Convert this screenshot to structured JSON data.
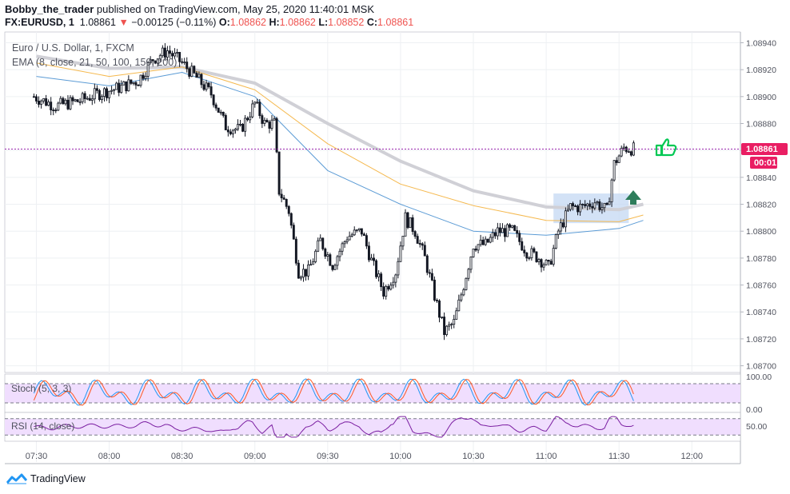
{
  "header": {
    "author": "Bobby_the_trader",
    "published_text": "published on TradingView.com, May 25, 2020 11:40:01 MSK",
    "symbol": "FX:EURUSD, 1",
    "last": "1.08861",
    "change": "−0.00125 (−0.11%)",
    "o_label": "O:",
    "o_value": "1.08862",
    "h_label": "H:",
    "h_value": "1.08862",
    "l_label": "L:",
    "l_value": "1.08852",
    "c_label": "C:",
    "c_value": "1.08861"
  },
  "legend": {
    "instrument": "Euro / U.S. Dollar, 1, FXCM",
    "ema": "EMA (8, close, 21, 50, 100, 150, 200)"
  },
  "price_label": "1.08861",
  "countdown": "00:01",
  "stoch_label": "Stoch (5, 3, 3)",
  "rsi_label": "RSI (14, close)",
  "stoch_ticks": [
    "100.00",
    "0.00"
  ],
  "rsi_ticks": [
    "50.00"
  ],
  "brand": "TradingView",
  "colors": {
    "up": "#131722",
    "down": "#131722",
    "wick": "#131722",
    "ema_fast": "#5b9bd5",
    "ema_mid": "#f5b94f",
    "ema_slow": "#d0d0d6",
    "price_line": "#9c27b0",
    "price_label_bg": "#e91e63",
    "stoch_k": "#2196f3",
    "stoch_d": "#ff5722",
    "rsi": "#7b1fa2",
    "band": "#f0defe",
    "zone": "#c4d8f3",
    "arrow": "#2e7d5b",
    "thumb": "#00c853"
  },
  "chart_data": {
    "type": "candlestick",
    "title": "Euro / U.S. Dollar, 1, FXCM",
    "x_ticks": [
      "07:30",
      "08:00",
      "08:30",
      "09:00",
      "09:30",
      "10:00",
      "10:30",
      "11:00",
      "11:30",
      "12:00"
    ],
    "y_ticks": [
      1.087,
      1.0872,
      1.0874,
      1.0876,
      1.0878,
      1.088,
      1.0882,
      1.0884,
      1.0886,
      1.0888,
      1.089,
      1.0892,
      1.0894
    ],
    "ylim": [
      1.08695,
      1.08948
    ],
    "x_range_minutes": [
      "07:30",
      "12:00"
    ],
    "last_price": 1.08861,
    "anchors": [
      [
        "07:29",
        1.089
      ],
      [
        "07:38",
        1.08893
      ],
      [
        "07:48",
        1.08897
      ],
      [
        "07:55",
        1.08902
      ],
      [
        "08:05",
        1.08907
      ],
      [
        "08:12",
        1.08912
      ],
      [
        "08:18",
        1.08928
      ],
      [
        "08:24",
        1.08934
      ],
      [
        "08:30",
        1.08925
      ],
      [
        "08:36",
        1.08914
      ],
      [
        "08:42",
        1.08902
      ],
      [
        "08:48",
        1.08878
      ],
      [
        "08:54",
        1.08875
      ],
      [
        "09:00",
        1.08895
      ],
      [
        "09:04",
        1.0888
      ],
      [
        "09:08",
        1.0888
      ],
      [
        "09:10",
        1.0883
      ],
      [
        "09:14",
        1.08815
      ],
      [
        "09:18",
        1.0877
      ],
      [
        "09:22",
        1.0877
      ],
      [
        "09:27",
        1.08793
      ],
      [
        "09:32",
        1.08775
      ],
      [
        "09:38",
        1.08796
      ],
      [
        "09:44",
        1.088
      ],
      [
        "09:48",
        1.08778
      ],
      [
        "09:53",
        1.08755
      ],
      [
        "09:58",
        1.0877
      ],
      [
        "10:02",
        1.0881
      ],
      [
        "10:06",
        1.088
      ],
      [
        "10:10",
        1.0878
      ],
      [
        "10:14",
        1.08752
      ],
      [
        "10:18",
        1.08725
      ],
      [
        "10:22",
        1.08732
      ],
      [
        "10:26",
        1.0876
      ],
      [
        "10:30",
        1.0879
      ],
      [
        "10:35",
        1.0879
      ],
      [
        "10:40",
        1.088
      ],
      [
        "10:46",
        1.088
      ],
      [
        "10:52",
        1.08785
      ],
      [
        "10:57",
        1.0878
      ],
      [
        "11:01",
        1.08773
      ],
      [
        "11:05",
        1.088
      ],
      [
        "11:10",
        1.08818
      ],
      [
        "11:15",
        1.08818
      ],
      [
        "11:20",
        1.08822
      ],
      [
        "11:25",
        1.08815
      ],
      [
        "11:28",
        1.0885
      ],
      [
        "11:32",
        1.08862
      ],
      [
        "11:36",
        1.08861
      ]
    ],
    "ema_fast": [
      [
        "07:30",
        1.08915
      ],
      [
        "08:00",
        1.08908
      ],
      [
        "08:30",
        1.08918
      ],
      [
        "09:00",
        1.089
      ],
      [
        "09:30",
        1.08845
      ],
      [
        "10:00",
        1.0882
      ],
      [
        "10:30",
        1.088
      ],
      [
        "11:00",
        1.08797
      ],
      [
        "11:30",
        1.08802
      ],
      [
        "11:40",
        1.08808
      ]
    ],
    "ema_mid": [
      [
        "07:30",
        1.08925
      ],
      [
        "08:00",
        1.08915
      ],
      [
        "08:30",
        1.08922
      ],
      [
        "09:00",
        1.08905
      ],
      [
        "09:30",
        1.08865
      ],
      [
        "10:00",
        1.08835
      ],
      [
        "10:30",
        1.08819
      ],
      [
        "11:00",
        1.08808
      ],
      [
        "11:30",
        1.08807
      ],
      [
        "11:40",
        1.08812
      ]
    ],
    "ema_slow": [
      [
        "07:30",
        1.0893
      ],
      [
        "08:00",
        1.08921
      ],
      [
        "08:30",
        1.08922
      ],
      [
        "09:00",
        1.0891
      ],
      [
        "09:30",
        1.0888
      ],
      [
        "10:00",
        1.08852
      ],
      [
        "10:30",
        1.0883
      ],
      [
        "11:00",
        1.08818
      ],
      [
        "11:30",
        1.08816
      ],
      [
        "11:40",
        1.0882
      ]
    ],
    "zone": {
      "x_from": "11:03",
      "x_to": "11:34",
      "y_from": 1.08806,
      "y_to": 1.08828
    },
    "indicators": {
      "stoch": {
        "levels": [
          80,
          20
        ],
        "range": [
          0,
          100
        ]
      },
      "rsi": {
        "levels": [
          70,
          30
        ],
        "range": [
          0,
          100
        ],
        "ticks": [
          50
        ]
      }
    }
  }
}
